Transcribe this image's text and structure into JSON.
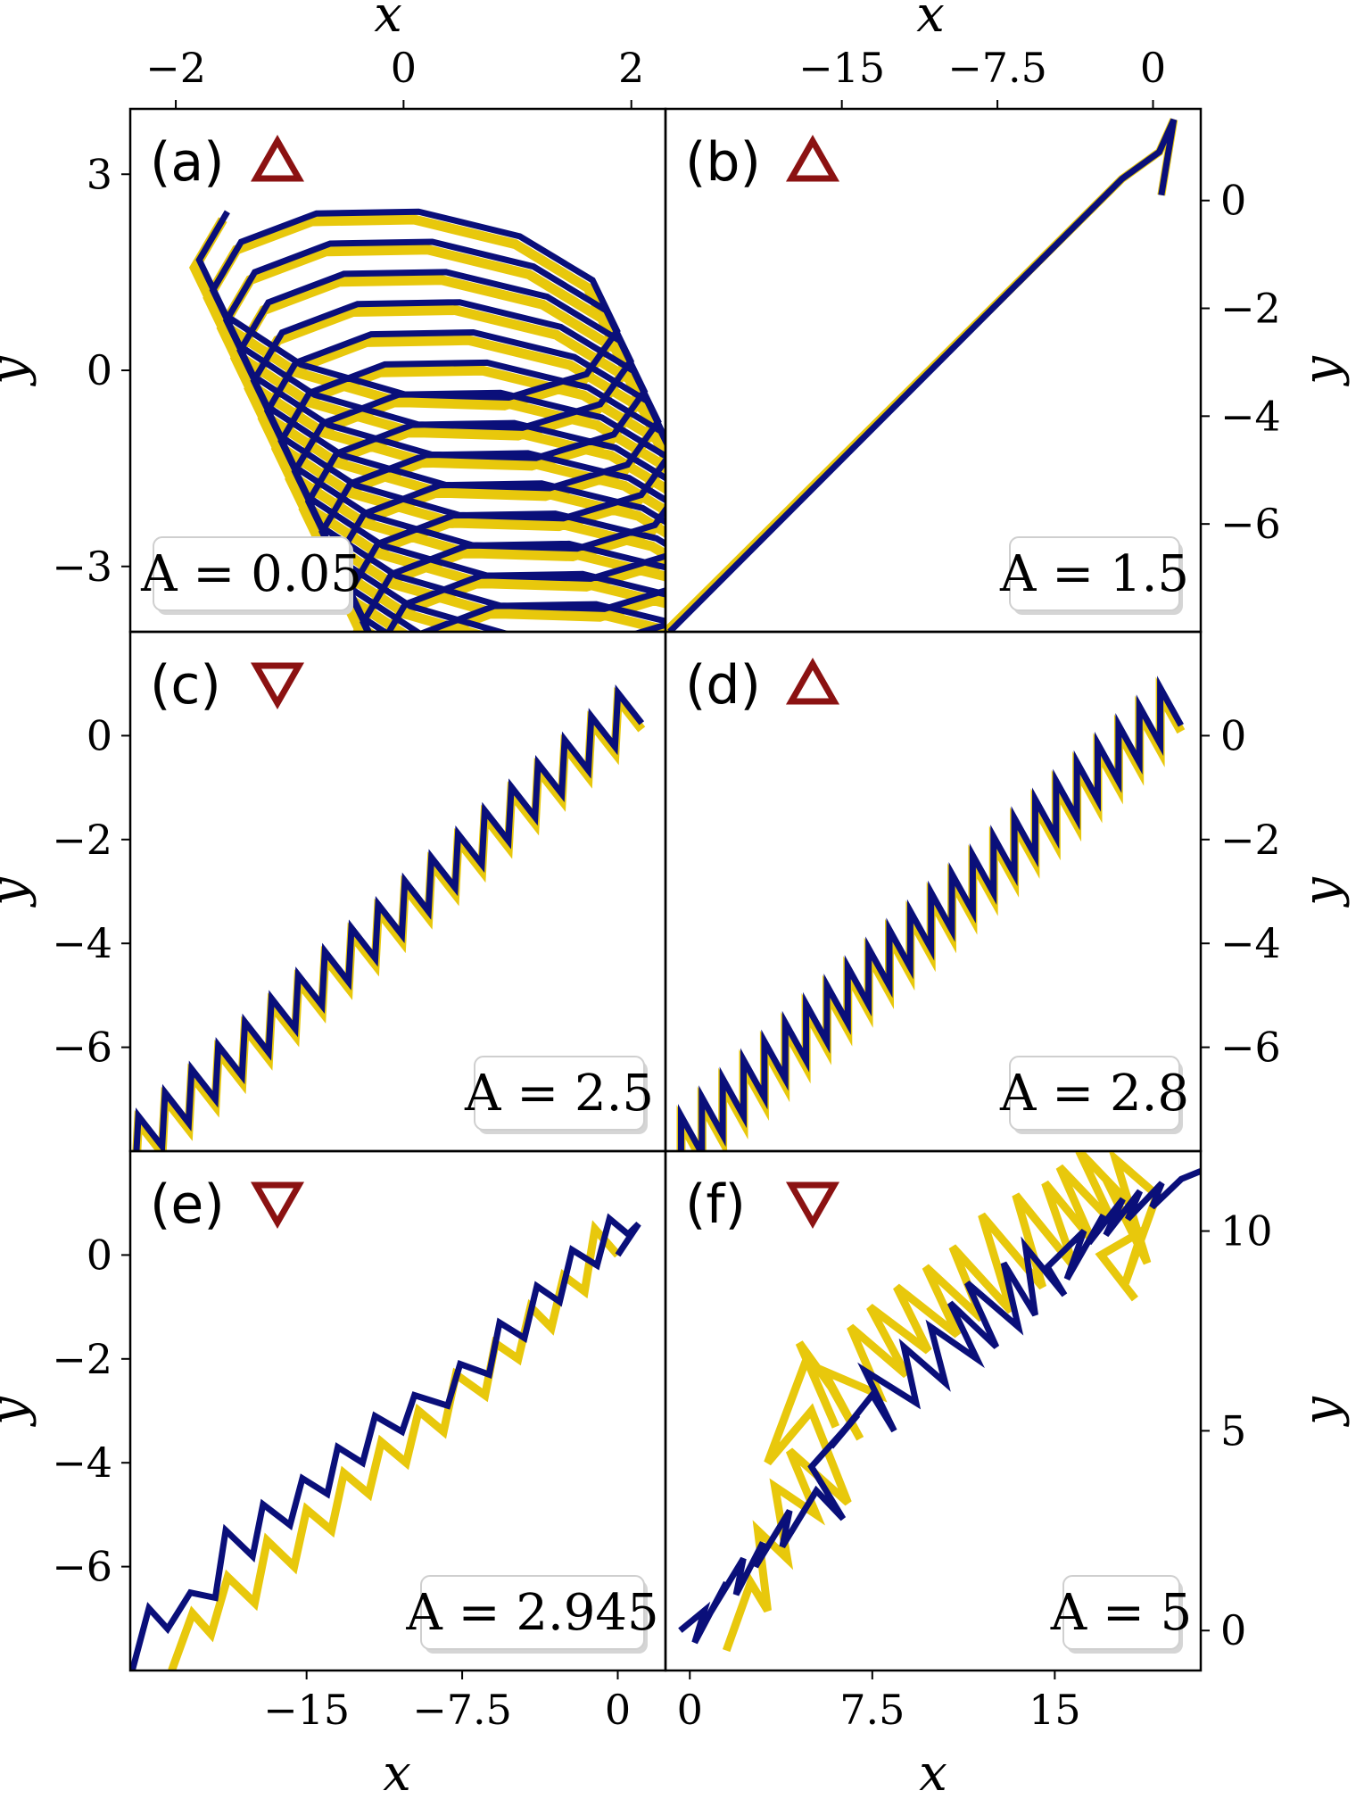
{
  "colors": {
    "series_yellow": "#e8c80c",
    "series_blue": "#0a0f7a",
    "marker": "#8b1212"
  },
  "chart_data": [
    {
      "panel": "(a)",
      "type": "line",
      "marker": "triangle-up",
      "annotation": "A = 0.05",
      "xlabel": "x",
      "ylabel": "y",
      "xlim": [
        -2.4,
        2.3
      ],
      "ylim": [
        -4.0,
        4.0
      ],
      "xticks": [
        -2,
        0,
        2
      ],
      "yticks": [
        -3,
        0,
        3
      ],
      "xtick_labels": [
        "−2",
        "0",
        "2"
      ],
      "ytick_labels": [
        "−3",
        "0",
        "3"
      ],
      "spiral": {
        "loops": 16,
        "x_radius": 1.9,
        "y_radius": 1.6,
        "center_start": [
          0.0,
          1.3
        ],
        "center_drift": [
          0.12,
          -0.33
        ]
      }
    },
    {
      "panel": "(b)",
      "type": "line",
      "marker": "triangle-up",
      "annotation": "A = 1.5",
      "xlabel": "x",
      "ylabel": "y",
      "xlim": [
        -23.5,
        2.3
      ],
      "ylim": [
        -8.0,
        1.7
      ],
      "xticks": [
        -15,
        -7.5,
        0
      ],
      "yticks": [
        0,
        -2,
        -4,
        -6
      ],
      "xtick_labels": [
        "−15",
        "−7.5",
        "0"
      ],
      "ytick_labels": [
        "0",
        "−2",
        "−4",
        "−6"
      ],
      "series": [
        {
          "name": "yellow",
          "x": [
            -23.5,
            -1.5,
            0.3,
            1.0,
            0.4
          ],
          "y": [
            -8.0,
            0.4,
            0.9,
            1.5,
            0.1
          ]
        },
        {
          "name": "blue",
          "x": [
            -23.3,
            -1.5,
            0.3,
            1.0,
            0.4
          ],
          "y": [
            -8.0,
            0.4,
            0.9,
            1.5,
            0.1
          ]
        }
      ]
    },
    {
      "panel": "(c)",
      "type": "line",
      "marker": "triangle-down",
      "annotation": "A = 2.5",
      "xlabel": "x",
      "ylabel": "y",
      "xlim": [
        -23.5,
        2.3
      ],
      "ylim": [
        -8.0,
        2.0
      ],
      "yticks": [
        0,
        -2,
        -4,
        -6
      ],
      "ytick_labels": [
        "0",
        "−2",
        "−4",
        "−6"
      ],
      "zigzag": {
        "start": [
          -23.5,
          -8.0
        ],
        "end": [
          0.9,
          0.6
        ],
        "teeth": 19,
        "amplitude": 0.9
      }
    },
    {
      "panel": "(d)",
      "type": "line",
      "marker": "triangle-up",
      "annotation": "A = 2.8",
      "xlabel": "x",
      "ylabel": "y",
      "xlim": [
        -23.5,
        2.3
      ],
      "ylim": [
        -8.0,
        2.0
      ],
      "yticks": [
        0,
        -2,
        -4,
        -6
      ],
      "ytick_labels": [
        "0",
        "−2",
        "−4",
        "−6"
      ],
      "zigzag": {
        "start": [
          -23.0,
          -8.0
        ],
        "end": [
          1.1,
          0.6
        ],
        "teeth": 24,
        "amplitude": 1.0
      }
    },
    {
      "panel": "(e)",
      "type": "line",
      "marker": "triangle-down",
      "annotation": "A = 2.945",
      "xlabel": "x",
      "ylabel": "y",
      "xlim": [
        -23.5,
        2.3
      ],
      "ylim": [
        -8.0,
        2.0
      ],
      "xticks": [
        -15,
        -7.5,
        0
      ],
      "yticks": [
        0,
        -2,
        -4,
        -6
      ],
      "xtick_labels": [
        "−15",
        "−7.5",
        "0"
      ],
      "ytick_labels": [
        "0",
        "−2",
        "−4",
        "−6"
      ],
      "series": [
        {
          "name": "yellow",
          "x": [
            -21.5,
            -20.5,
            -19.6,
            -18.8,
            -17.5,
            -16.9,
            -15.6,
            -15.0,
            -13.8,
            -13.2,
            -12.0,
            -11.4,
            -10.2,
            -9.6,
            -8.4,
            -7.8,
            -6.4,
            -5.9,
            -4.8,
            -4.2,
            -3.2,
            -2.6,
            -1.6,
            -1.1,
            0.0
          ],
          "y": [
            -8.0,
            -6.9,
            -7.3,
            -6.2,
            -6.7,
            -5.5,
            -6.0,
            -4.9,
            -5.3,
            -4.2,
            -4.6,
            -3.6,
            -4.0,
            -3.0,
            -3.4,
            -2.3,
            -2.7,
            -1.7,
            -2.0,
            -1.0,
            -1.4,
            -0.4,
            -0.7,
            0.5,
            0.0
          ]
        },
        {
          "name": "blue",
          "x": [
            -23.4,
            -22.6,
            -21.7,
            -20.6,
            -19.4,
            -18.9,
            -17.6,
            -17.1,
            -15.8,
            -15.2,
            -14.0,
            -13.5,
            -12.3,
            -11.7,
            -10.4,
            -9.8,
            -8.2,
            -7.6,
            -6.2,
            -5.7,
            -4.5,
            -3.9,
            -2.8,
            -2.2,
            -1.0,
            -0.4,
            0.5,
            1.0,
            0.0
          ],
          "y": [
            -8.0,
            -6.8,
            -7.2,
            -6.5,
            -6.6,
            -5.3,
            -5.8,
            -4.8,
            -5.2,
            -4.3,
            -4.6,
            -3.7,
            -4.0,
            -3.1,
            -3.4,
            -2.7,
            -2.9,
            -2.1,
            -2.3,
            -1.3,
            -1.6,
            -0.6,
            -0.9,
            0.1,
            -0.2,
            0.7,
            0.4,
            0.6,
            0.0
          ]
        }
      ]
    },
    {
      "panel": "(f)",
      "type": "line",
      "marker": "triangle-down",
      "annotation": "A = 5",
      "xlabel": "x",
      "ylabel": "y",
      "xlim": [
        -1.0,
        21.0
      ],
      "ylim": [
        -1.0,
        12.0
      ],
      "xticks": [
        0,
        7.5,
        15
      ],
      "yticks": [
        0,
        5,
        10
      ],
      "xtick_labels": [
        "0",
        "7.5",
        "15"
      ],
      "ytick_labels": [
        "0",
        "5",
        "10"
      ],
      "series": [
        {
          "name": "yellow",
          "x": [
            1.5,
            2.5,
            3.2,
            2.8,
            4.0,
            3.5,
            5.2,
            4.1,
            6.5,
            5.0,
            3.2,
            4.8,
            6.0,
            4.5,
            5.8,
            7.0,
            5.5,
            7.8,
            6.6,
            8.9,
            7.4,
            9.8,
            8.5,
            11.0,
            9.7,
            12.0,
            10.8,
            13.2,
            12.0,
            14.5,
            13.4,
            15.8,
            14.6,
            16.5,
            15.2,
            17.4,
            16.0,
            18.2,
            17.1,
            18.8,
            17.5,
            19.2,
            17.9,
            18.6,
            16.9,
            18.3
          ],
          "y": [
            -0.5,
            1.2,
            0.5,
            2.5,
            1.8,
            3.6,
            2.9,
            4.5,
            3.2,
            5.5,
            4.2,
            6.8,
            5.1,
            7.2,
            6.1,
            4.8,
            6.5,
            5.9,
            7.6,
            6.4,
            8.1,
            7.0,
            8.6,
            7.4,
            9.1,
            7.8,
            9.6,
            8.0,
            10.4,
            8.6,
            10.9,
            9.1,
            11.2,
            9.8,
            11.6,
            10.2,
            12.0,
            10.6,
            11.3,
            9.2,
            11.8,
            10.9,
            8.7,
            10.0,
            9.4,
            8.3
          ]
        },
        {
          "name": "blue",
          "x": [
            -0.4,
            0.6,
            0.2,
            1.5,
            0.8,
            2.2,
            1.9,
            3.0,
            2.7,
            4.1,
            3.8,
            5.2,
            6.3,
            5.0,
            6.9,
            5.8,
            7.5,
            8.4,
            7.2,
            9.3,
            8.8,
            10.5,
            9.9,
            11.8,
            10.7,
            12.6,
            11.4,
            13.5,
            12.9,
            14.2,
            13.8,
            15.4,
            14.7,
            16.2,
            15.5,
            17.0,
            16.4,
            17.8,
            17.1,
            18.5,
            18.0,
            19.4,
            19.0,
            20.2,
            21.0
          ],
          "y": [
            0.0,
            0.5,
            -0.3,
            1.2,
            0.4,
            1.8,
            0.9,
            2.2,
            1.6,
            3.0,
            2.1,
            3.5,
            2.8,
            4.1,
            5.4,
            4.6,
            5.9,
            5.0,
            6.5,
            5.7,
            7.1,
            6.2,
            7.6,
            6.8,
            8.2,
            7.1,
            8.7,
            7.6,
            9.2,
            7.9,
            9.6,
            8.4,
            9.1,
            10.0,
            8.8,
            10.4,
            9.7,
            10.8,
            9.9,
            11.0,
            10.3,
            11.2,
            10.6,
            11.3,
            11.5
          ]
        }
      ]
    }
  ]
}
